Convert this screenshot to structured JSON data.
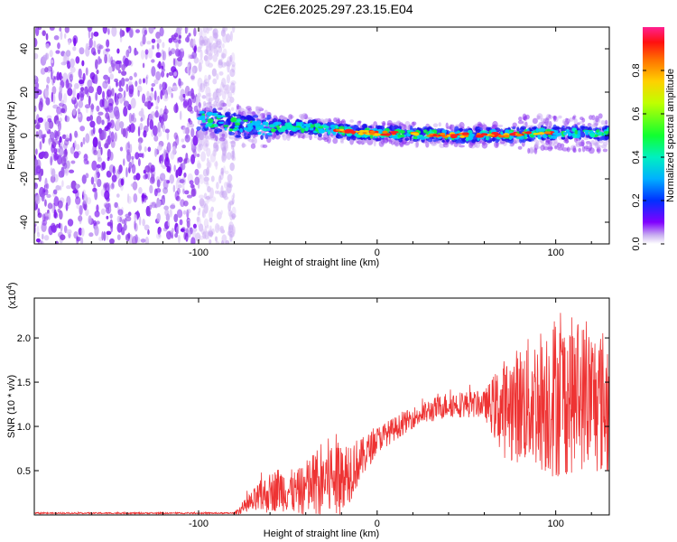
{
  "title": "C2E6.2025.297.23.15.E04",
  "chart_data": [
    {
      "type": "heatmap",
      "xlabel": "Height of straight line (km)",
      "ylabel": "Frequency (Hz)",
      "xlim": [
        -192,
        130
      ],
      "ylim": [
        -50,
        50
      ],
      "xticks": [
        -100,
        0,
        100
      ],
      "xtick_labels": [
        "-100",
        "0",
        "100"
      ],
      "yticks": [
        -40,
        -20,
        0,
        20,
        40
      ],
      "ytick_labels": [
        "-40",
        "-20",
        "0",
        "20",
        "40"
      ],
      "colorbar": {
        "label": "Normalized spectral amplitude",
        "range": [
          0,
          1
        ],
        "ticks": [
          0.0,
          0.2,
          0.4,
          0.6,
          0.8
        ],
        "tick_labels": [
          "0.0",
          "0.2",
          "0.4",
          "0.6",
          "0.8"
        ]
      },
      "noise_region_x": [
        -192,
        -80
      ],
      "signal_band": {
        "x_start": -100,
        "x_end": 130,
        "center_freq": [
          [
            -100,
            8
          ],
          [
            -75,
            4
          ],
          [
            -40,
            4
          ],
          [
            -20,
            2
          ],
          [
            0,
            1
          ],
          [
            50,
            0
          ],
          [
            100,
            1
          ],
          [
            130,
            1
          ]
        ]
      }
    },
    {
      "type": "line",
      "xlabel": "Height of straight line (km)",
      "ylabel": "SNR (10 * v/v)",
      "multiplier_label": "(x10",
      "multiplier_exp": "4",
      "xlim": [
        -192,
        130
      ],
      "ylim": [
        0,
        24500
      ],
      "xticks": [
        -100,
        0,
        100
      ],
      "xtick_labels": [
        "-100",
        "0",
        "100"
      ],
      "yticks": [
        5000,
        10000,
        15000,
        20000
      ],
      "ytick_labels": [
        "0.5",
        "1.0",
        "1.5",
        "2.0"
      ],
      "color": "#ee3333",
      "envelope": [
        {
          "x": -192,
          "base": 200,
          "amp": 80
        },
        {
          "x": -80,
          "base": 200,
          "amp": 80
        },
        {
          "x": -65,
          "base": 2000,
          "amp": 2000
        },
        {
          "x": -55,
          "base": 3000,
          "amp": 2500
        },
        {
          "x": -45,
          "base": 2500,
          "amp": 2500
        },
        {
          "x": -30,
          "base": 4000,
          "amp": 4500
        },
        {
          "x": -20,
          "base": 4500,
          "amp": 5000
        },
        {
          "x": -10,
          "base": 6000,
          "amp": 2500
        },
        {
          "x": 0,
          "base": 8500,
          "amp": 1500
        },
        {
          "x": 20,
          "base": 11000,
          "amp": 1200
        },
        {
          "x": 40,
          "base": 12500,
          "amp": 1500
        },
        {
          "x": 60,
          "base": 12500,
          "amp": 1500
        },
        {
          "x": 70,
          "base": 12000,
          "amp": 5500
        },
        {
          "x": 90,
          "base": 13000,
          "amp": 8000
        },
        {
          "x": 100,
          "base": 13500,
          "amp": 9500
        },
        {
          "x": 115,
          "base": 13500,
          "amp": 8500
        },
        {
          "x": 130,
          "base": 12500,
          "amp": 8500
        }
      ]
    }
  ]
}
